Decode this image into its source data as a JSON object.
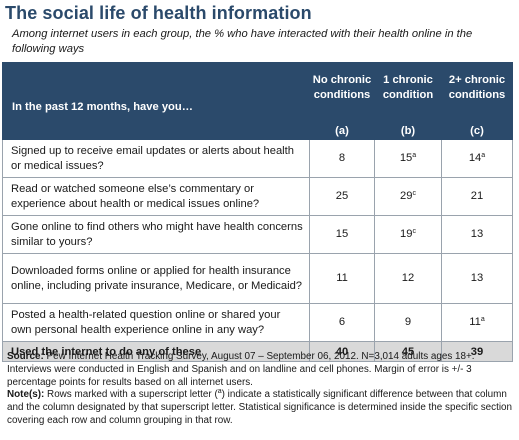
{
  "title": "The social life of health information",
  "subtitle": "Among internet users in each group, the % who have interacted with their health online in the following ways",
  "table": {
    "question_header": "In the past 12 months, have you…",
    "columns": [
      {
        "name": "No chronic conditions",
        "letter": "(a)"
      },
      {
        "name": "1 chronic condition",
        "letter": "(b)"
      },
      {
        "name": "2+ chronic conditions",
        "letter": "(c)"
      }
    ],
    "rows": [
      {
        "label": "Signed up to receive email updates or alerts about health or medical issues?",
        "values": [
          {
            "v": "8",
            "sup": ""
          },
          {
            "v": "15",
            "sup": "a"
          },
          {
            "v": "14",
            "sup": "a"
          }
        ]
      },
      {
        "label": "Read or watched someone else’s commentary or experience about health or medical issues online?",
        "values": [
          {
            "v": "25",
            "sup": ""
          },
          {
            "v": "29",
            "sup": "c"
          },
          {
            "v": "21",
            "sup": ""
          }
        ]
      },
      {
        "label": "Gone online to find others who might have health concerns similar to yours?",
        "values": [
          {
            "v": "15",
            "sup": ""
          },
          {
            "v": "19",
            "sup": "c"
          },
          {
            "v": "13",
            "sup": ""
          }
        ]
      },
      {
        "label": "Downloaded forms online or applied for health insurance online, including private insurance, Medicare, or Medicaid?",
        "values": [
          {
            "v": "11",
            "sup": ""
          },
          {
            "v": "12",
            "sup": ""
          },
          {
            "v": "13",
            "sup": ""
          }
        ]
      },
      {
        "label": "Posted a health-related question online or shared your own personal health experience online in any way?",
        "values": [
          {
            "v": "6",
            "sup": ""
          },
          {
            "v": "9",
            "sup": ""
          },
          {
            "v": "11",
            "sup": "a"
          }
        ]
      }
    ],
    "total": {
      "label": "Used the internet to do any of these",
      "values": [
        "40",
        "45",
        "39"
      ]
    }
  },
  "notes": {
    "source_label": "Source:",
    "source_text": " Pew Internet Health Tracking Survey, August 07 – September 06, 2012. N=3,014 adults ages 18+. Interviews were conducted in English and Spanish and on landline and cell phones.  Margin of error is +/- 3 percentage points for results based on all internet users.",
    "note_label": "Note(s):",
    "note_text_1": " Rows marked with a superscript letter (",
    "note_sup": "a",
    "note_text_2": ") indicate a statistically significant difference between that column and the column designated by that superscript letter. Statistical significance is determined inside the specific section covering each row and column grouping in that row."
  }
}
